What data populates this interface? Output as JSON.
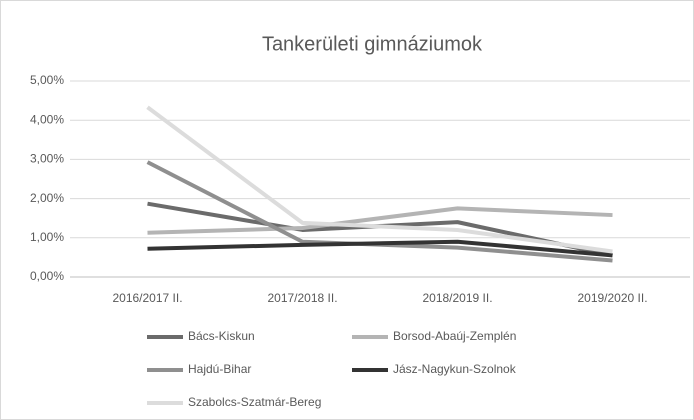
{
  "chart_data": {
    "type": "line",
    "title": "Tankerületi gimnáziumok",
    "categories": [
      "2016/2017 II.",
      "2017/2018 II.",
      "2018/2019 II.",
      "2019/2020 II."
    ],
    "series": [
      {
        "name": "Bács-Kiskun",
        "color": "#6b6b6b",
        "values": [
          1.87,
          1.2,
          1.4,
          0.55
        ]
      },
      {
        "name": "Borsod-Abaúj-Zemplén",
        "color": "#b4b4b4",
        "values": [
          1.13,
          1.25,
          1.75,
          1.58
        ]
      },
      {
        "name": "Hajdú-Bihar",
        "color": "#8f8f8f",
        "values": [
          2.93,
          0.9,
          0.75,
          0.42
        ]
      },
      {
        "name": "Jász-Nagykun-Szolnok",
        "color": "#333333",
        "values": [
          0.72,
          0.82,
          0.9,
          0.55
        ]
      },
      {
        "name": "Szabolcs-Szatmár-Bereg",
        "color": "#dcdcdc",
        "values": [
          4.33,
          1.38,
          1.2,
          0.65
        ]
      }
    ],
    "ylim": [
      0,
      5
    ],
    "yticks": [
      {
        "value": 0,
        "label": "0,00%"
      },
      {
        "value": 1,
        "label": "1,00%"
      },
      {
        "value": 2,
        "label": "2,00%"
      },
      {
        "value": 3,
        "label": "3,00%"
      },
      {
        "value": 4,
        "label": "4,00%"
      },
      {
        "value": 5,
        "label": "5,00%"
      }
    ],
    "grid": true
  }
}
